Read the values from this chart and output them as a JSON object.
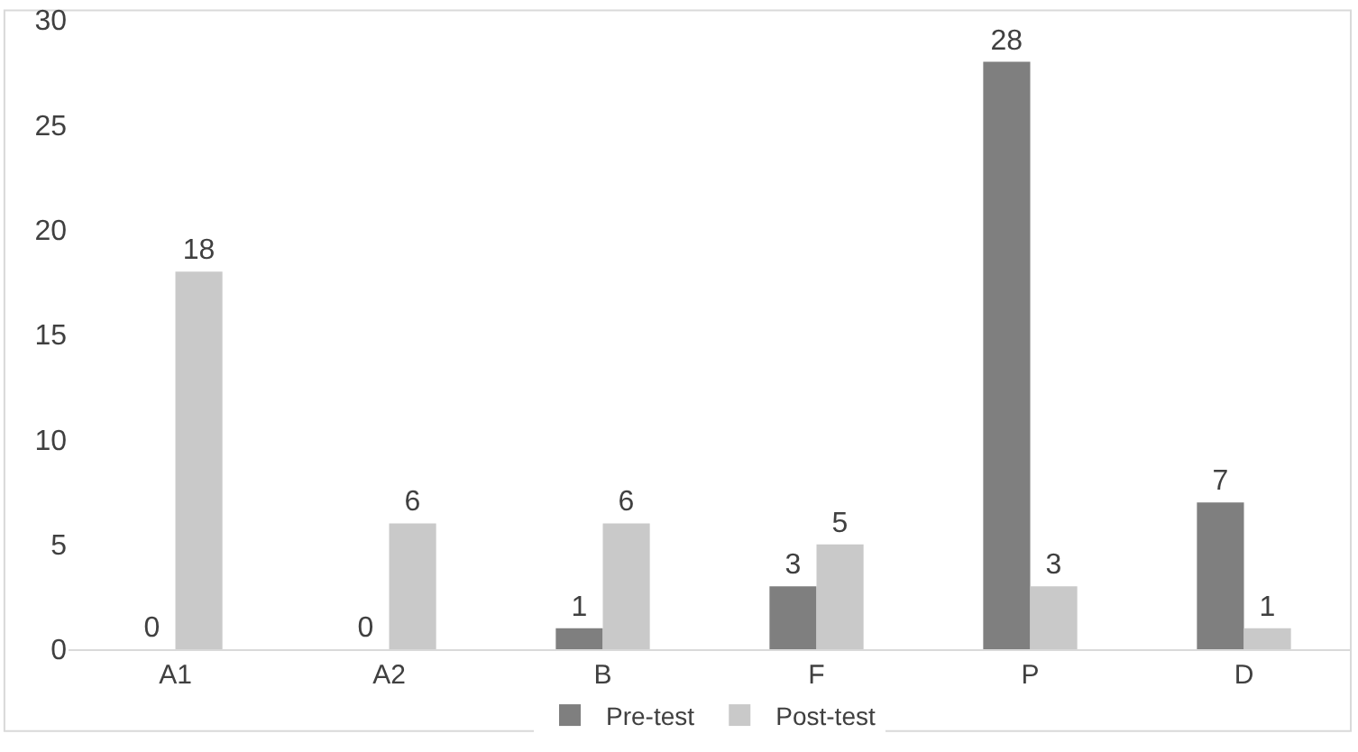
{
  "chart_data": {
    "type": "bar",
    "categories": [
      "A1",
      "A2",
      "B",
      "F",
      "P",
      "D"
    ],
    "series": [
      {
        "name": "Pre-test",
        "color": "#7f7f7f",
        "values": [
          0,
          0,
          1,
          3,
          28,
          7
        ]
      },
      {
        "name": "Post-test",
        "color": "#c9c9c9",
        "values": [
          18,
          6,
          6,
          5,
          3,
          1
        ]
      }
    ],
    "ylim": [
      0,
      30
    ],
    "yticks": [
      0,
      5,
      10,
      15,
      20,
      25,
      30
    ],
    "grid": false,
    "legend": "bottom",
    "data_labels": true
  }
}
